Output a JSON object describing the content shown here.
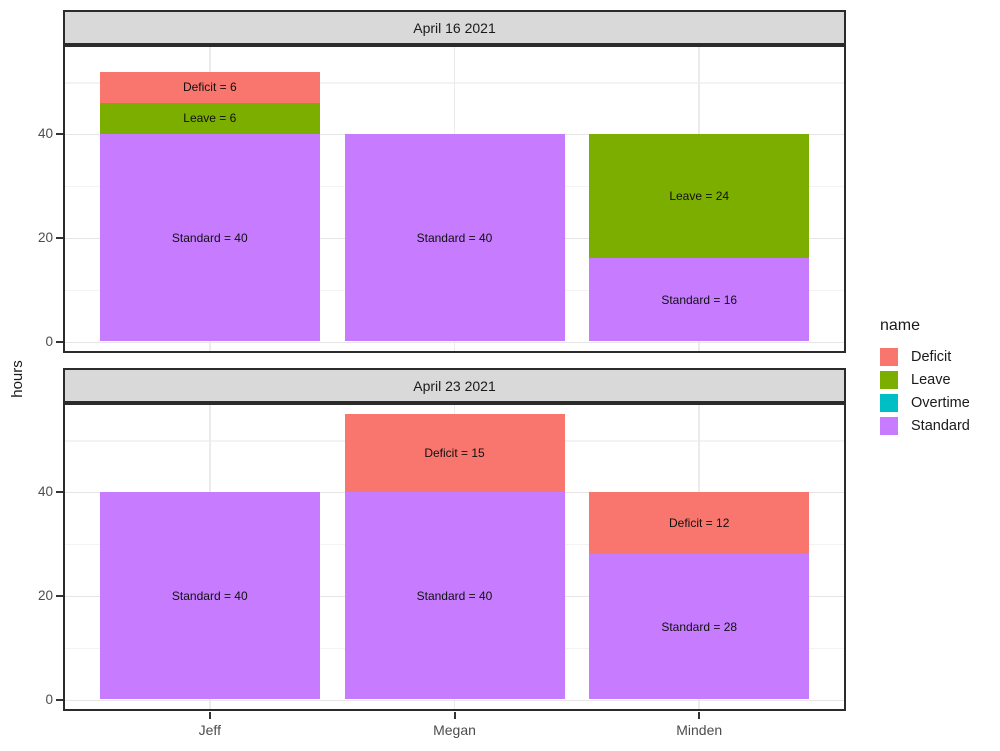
{
  "chart_data": {
    "type": "bar",
    "stacked": true,
    "orientation": "vertical",
    "xlabel": "",
    "ylabel": "hours",
    "categories": [
      "Jeff",
      "Megan",
      "Minden"
    ],
    "yticks": [
      0,
      20,
      40
    ],
    "yticklabels": [
      "0",
      "20",
      "40"
    ],
    "yticks_minor": [
      10,
      30,
      50
    ],
    "ylim": [
      0,
      57
    ],
    "grid": true,
    "legend": {
      "title": "name",
      "position": "right",
      "entries": [
        {
          "label": "Deficit",
          "color": "#F8766D"
        },
        {
          "label": "Leave",
          "color": "#7CAE00"
        },
        {
          "label": "Overtime",
          "color": "#00BFC4"
        },
        {
          "label": "Standard",
          "color": "#C77CFF"
        }
      ]
    },
    "series_colors": {
      "Deficit": "#F8766D",
      "Leave": "#7CAE00",
      "Overtime": "#00BFC4",
      "Standard": "#C77CFF"
    },
    "facets": [
      {
        "title": "April 16 2021",
        "bars": [
          {
            "category": "Jeff",
            "segments": [
              {
                "name": "Standard",
                "value": 40,
                "label": "Standard = 40"
              },
              {
                "name": "Leave",
                "value": 6,
                "label": "Leave = 6"
              },
              {
                "name": "Deficit",
                "value": 6,
                "label": "Deficit = 6"
              }
            ]
          },
          {
            "category": "Megan",
            "segments": [
              {
                "name": "Standard",
                "value": 40,
                "label": "Standard = 40"
              }
            ]
          },
          {
            "category": "Minden",
            "segments": [
              {
                "name": "Standard",
                "value": 16,
                "label": "Standard = 16"
              },
              {
                "name": "Leave",
                "value": 24,
                "label": "Leave = 24"
              }
            ]
          }
        ]
      },
      {
        "title": "April 23 2021",
        "bars": [
          {
            "category": "Jeff",
            "segments": [
              {
                "name": "Standard",
                "value": 40,
                "label": "Standard = 40"
              }
            ]
          },
          {
            "category": "Megan",
            "segments": [
              {
                "name": "Standard",
                "value": 40,
                "label": "Standard = 40"
              },
              {
                "name": "Deficit",
                "value": 15,
                "label": "Deficit = 15"
              }
            ]
          },
          {
            "category": "Minden",
            "segments": [
              {
                "name": "Standard",
                "value": 28,
                "label": "Standard = 28"
              },
              {
                "name": "Deficit",
                "value": 12,
                "label": "Deficit = 12"
              }
            ]
          }
        ]
      }
    ],
    "theme": {
      "strip_bg": "#D9D9D9",
      "panel_border": "#2B2B2B",
      "grid_major": "#E6E6E6",
      "grid_minor": "#F3F3F3",
      "tick_label_color": "#4D4D4D",
      "text_color": "#1A1A1A"
    }
  }
}
